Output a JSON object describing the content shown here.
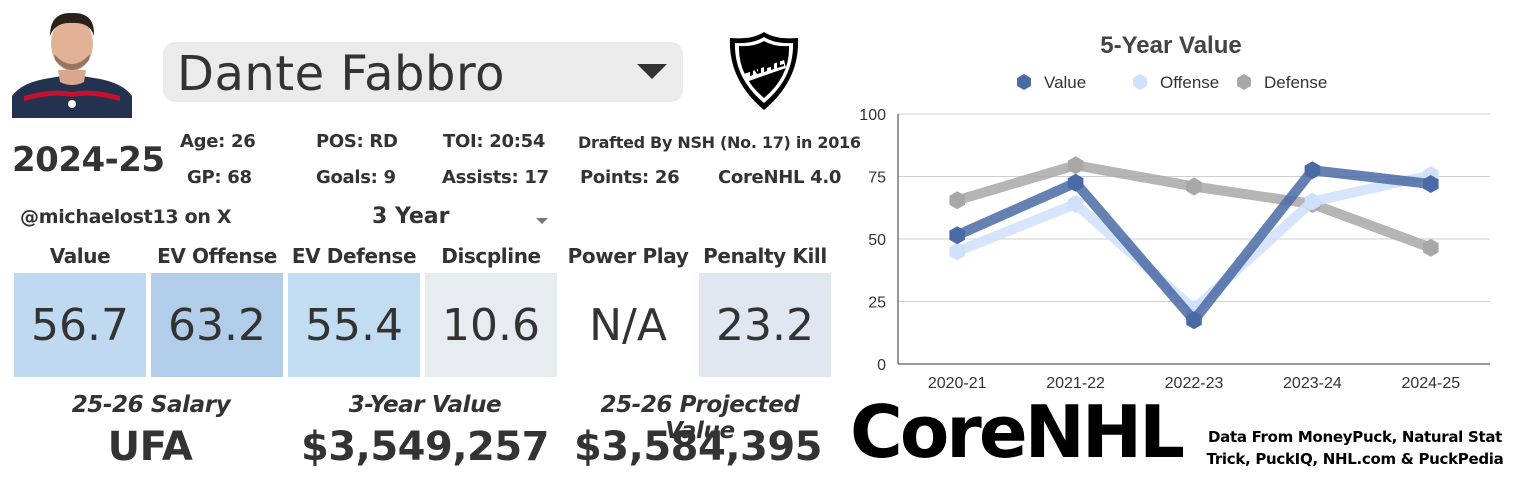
{
  "player": {
    "name": "Dante Fabbro",
    "season": "2024-25",
    "handle": "@michaelost13 on X"
  },
  "stats": {
    "age": "Age: 26",
    "gp": "GP: 68",
    "pos": "POS: RD",
    "goals": "Goals: 9",
    "toi": "TOI: 20:54",
    "assists": "Assists: 17",
    "drafted": "Drafted By NSH (No. 17) in 2016",
    "points": "Points: 26",
    "model": "CoreNHL 4.0"
  },
  "period_select": {
    "value": "3 Year"
  },
  "categories": [
    {
      "label": "Value",
      "value": "56.7",
      "color": "#bfdaf0"
    },
    {
      "label": "EV Offense",
      "value": "63.2",
      "color": "#b1cdea"
    },
    {
      "label": "EV Defense",
      "value": "55.4",
      "color": "#c2dcf1"
    },
    {
      "label": "Discpline",
      "value": "10.6",
      "color": "#e7ecee"
    },
    {
      "label": "Power Play",
      "value": "N/A",
      "color": "#ffffff"
    },
    {
      "label": "Penalty Kill",
      "value": "23.2",
      "color": "#e1e7f0"
    }
  ],
  "money": {
    "salary_label": "25-26 Salary",
    "salary_value": "UFA",
    "three_year_label": "3-Year Value",
    "three_year_value": "$3,549,257",
    "projected_label": "25-26 Projected Value",
    "projected_value": "$3,584,395"
  },
  "brand": {
    "name": "CoreNHL"
  },
  "source": {
    "line1": "Data From MoneyPuck, Natural Stat",
    "line2": "Trick, PuckIQ, NHL.com & PuckPedia"
  },
  "chart_data": {
    "type": "line",
    "title": "5-Year Value",
    "categories": [
      "2020-21",
      "2021-22",
      "2022-23",
      "2023-24",
      "2024-25"
    ],
    "ylim": [
      0,
      100
    ],
    "yticks": [
      0,
      25,
      50,
      75,
      100
    ],
    "legend_position": "top",
    "series": [
      {
        "name": "Value",
        "color": "#4a6aa5",
        "values": [
          51.5,
          72.5,
          17.5,
          77.5,
          72
        ]
      },
      {
        "name": "Offense",
        "color": "#cfe0fa",
        "values": [
          45,
          64,
          22,
          65,
          75.5
        ]
      },
      {
        "name": "Defense",
        "color": "#a8a8a8",
        "values": [
          65.5,
          79.5,
          71,
          64,
          46.5
        ]
      }
    ]
  }
}
